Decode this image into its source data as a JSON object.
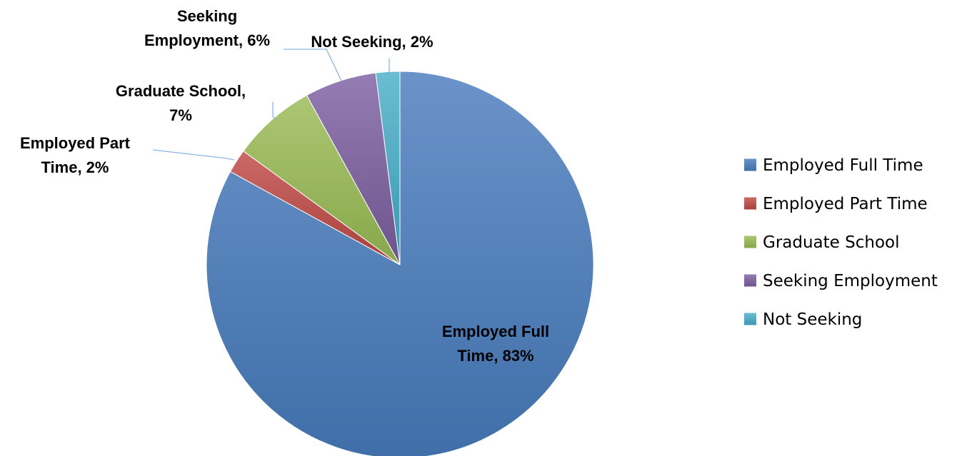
{
  "chart_data": {
    "type": "pie",
    "title": "",
    "start_angle_deg": 0,
    "direction": "clockwise",
    "slices": [
      {
        "name": "Employed Full Time",
        "value": 83,
        "label_lines": [
          "Employed Full",
          "Time, 83%"
        ],
        "color": "#4f81bd",
        "color_light": "#6a93c9",
        "color_dark": "#3f6ea8"
      },
      {
        "name": "Employed Part Time",
        "value": 2,
        "label_lines": [
          "Employed Part",
          "Time, 2%"
        ],
        "color": "#c0504d",
        "color_light": "#cc6a67",
        "color_dark": "#a8403d"
      },
      {
        "name": "Graduate School",
        "value": 7,
        "label_lines": [
          "Graduate School,",
          "7%"
        ],
        "color": "#9bbb59",
        "color_light": "#acc773",
        "color_dark": "#87a74a"
      },
      {
        "name": "Seeking Employment",
        "value": 6,
        "label_lines": [
          "Seeking",
          "Employment, 6%"
        ],
        "color": "#8064a2",
        "color_light": "#957db3",
        "color_dark": "#6c548c"
      },
      {
        "name": "Not Seeking",
        "value": 2,
        "label_lines": [
          "Not Seeking, 2%"
        ],
        "color": "#4bacc6",
        "color_light": "#6bbdd2",
        "color_dark": "#3b97b0"
      }
    ],
    "legend": {
      "position": "right"
    }
  }
}
